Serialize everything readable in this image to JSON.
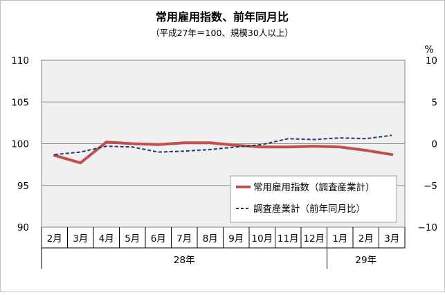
{
  "chart_data": {
    "type": "line",
    "title": "常用雇用指数、前年同月比",
    "subtitle": "（平成27年＝100、規模30人以上）",
    "categories": [
      "2月",
      "3月",
      "4月",
      "5月",
      "6月",
      "7月",
      "8月",
      "9月",
      "10月",
      "11月",
      "12月",
      "1月",
      "2月",
      "3月"
    ],
    "year_groups": [
      {
        "label": "28年",
        "from": 0,
        "to": 10
      },
      {
        "label": "29年",
        "from": 11,
        "to": 13
      }
    ],
    "left_axis": {
      "ylim": [
        90,
        110
      ],
      "ticks": [
        "90",
        "95",
        "100",
        "105",
        "110"
      ]
    },
    "right_axis": {
      "ylim": [
        -10,
        10
      ],
      "ticks": [
        "−10",
        "−5",
        "0",
        "5",
        "10"
      ],
      "unit": "%"
    },
    "grid": true,
    "legend_position": "lower-right",
    "series": [
      {
        "name": "常用雇用指数（調査産業計）",
        "axis": "left",
        "color": "#c0504d",
        "style": "solid",
        "values": [
          98.6,
          97.7,
          100.2,
          100.0,
          99.9,
          100.1,
          100.1,
          99.8,
          99.6,
          99.6,
          99.7,
          99.6,
          99.2,
          98.7
        ]
      },
      {
        "name": "調査産業計（前年同月比）",
        "axis": "right",
        "color": "#1f3864",
        "style": "dashed",
        "values": [
          -1.3,
          -1.0,
          -0.3,
          -0.4,
          -1.0,
          -0.9,
          -0.7,
          -0.4,
          -0.1,
          0.6,
          0.5,
          0.7,
          0.6,
          1.0
        ]
      }
    ]
  }
}
